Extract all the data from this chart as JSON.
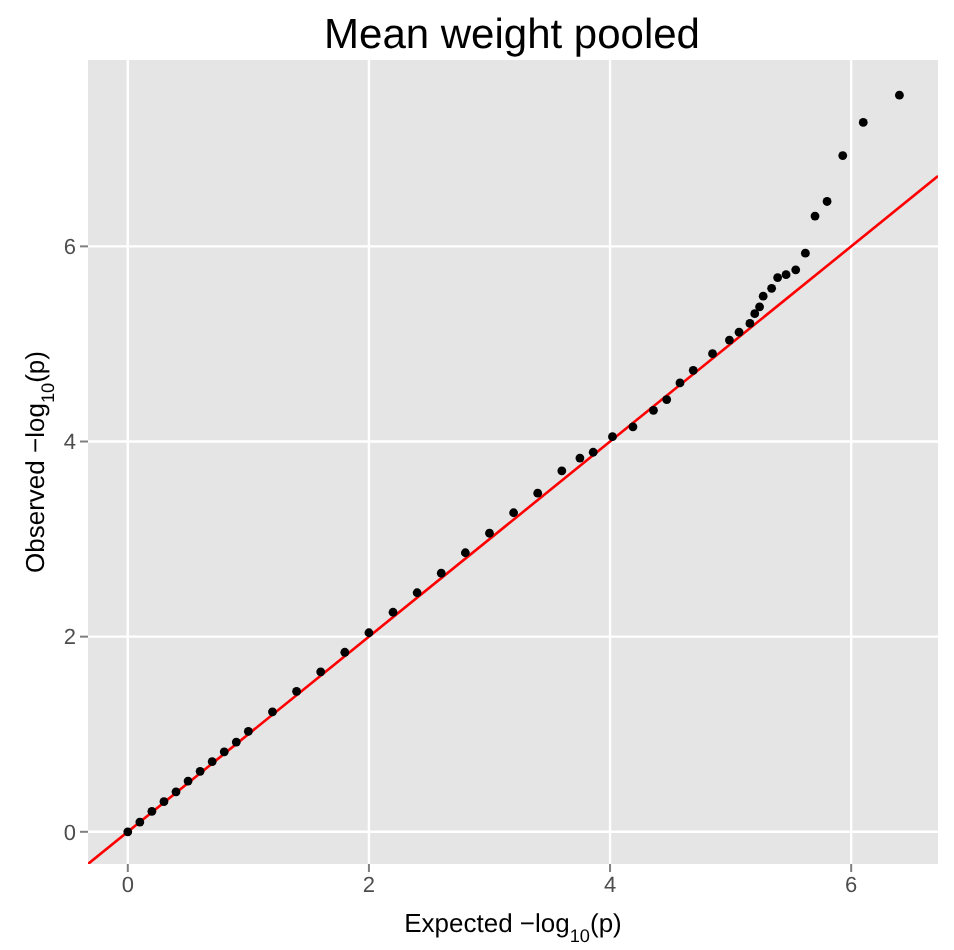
{
  "chart_data": {
    "type": "scatter",
    "title": "Mean weight pooled",
    "xlabel": "Expected −log$_{10}$(p)",
    "ylabel": "Observed −log$_{10}$(p)",
    "xlim": [
      -0.33,
      6.72
    ],
    "ylim": [
      -0.33,
      7.91
    ],
    "xticks": [
      0,
      2,
      4,
      6
    ],
    "yticks": [
      0,
      2,
      4,
      6
    ],
    "grid": true,
    "marker": "circle",
    "series": [
      {
        "color": "#000000",
        "x": [
          0,
          0.1,
          0.2,
          0.3,
          0.4,
          0.5,
          0.6,
          0.7,
          0.8,
          0.9,
          1,
          1.2,
          1.4,
          1.6,
          1.8,
          2,
          2.2,
          2.4,
          2.6,
          2.8,
          3,
          3.2,
          3.4,
          3.6,
          3.75,
          3.86,
          4.02,
          4.19,
          4.36,
          4.47,
          4.58,
          4.69,
          4.85,
          4.99,
          5.07,
          5.16,
          5.2,
          5.24,
          5.27,
          5.34,
          5.39,
          5.46,
          5.54,
          5.62,
          5.7,
          5.8,
          5.93,
          6.1,
          6.4
        ],
        "values": [
          0,
          0.1,
          0.21,
          0.31,
          0.41,
          0.52,
          0.62,
          0.72,
          0.82,
          0.92,
          1.03,
          1.23,
          1.44,
          1.64,
          1.84,
          2.04,
          2.25,
          2.45,
          2.65,
          2.86,
          3.06,
          3.27,
          3.47,
          3.7,
          3.83,
          3.89,
          4.05,
          4.15,
          4.32,
          4.43,
          4.6,
          4.73,
          4.9,
          5.04,
          5.12,
          5.21,
          5.31,
          5.38,
          5.49,
          5.57,
          5.68,
          5.71,
          5.76,
          5.93,
          6.31,
          6.46,
          6.93,
          7.27,
          7.55
        ]
      },
      {
        "type": "line",
        "color": "#ff0000",
        "marker": "none",
        "x": [
          -0.33,
          6.72
        ],
        "values": [
          -0.33,
          6.72
        ]
      }
    ]
  }
}
